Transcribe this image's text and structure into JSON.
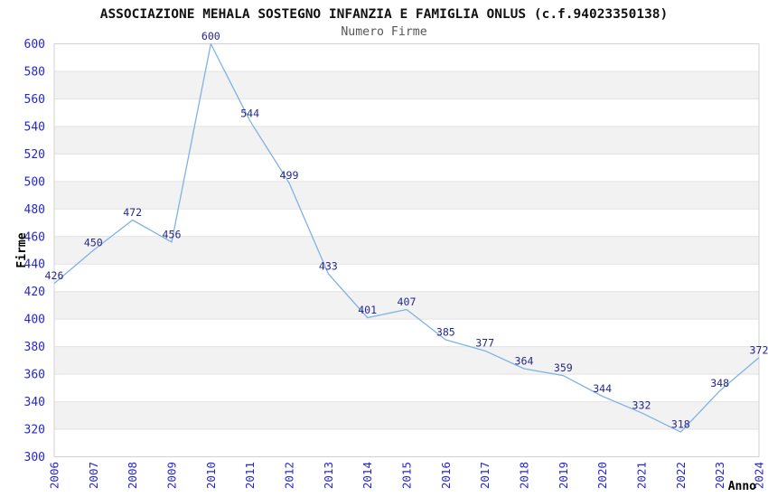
{
  "header": {
    "title": "ASSOCIAZIONE MEHALA SOSTEGNO INFANZIA E FAMIGLIA ONLUS (c.f.94023350138)",
    "subtitle": "Numero Firme"
  },
  "chart_data": {
    "type": "line",
    "title": "ASSOCIAZIONE MEHALA SOSTEGNO INFANZIA E FAMIGLIA ONLUS (c.f.94023350138)",
    "subtitle": "Numero Firme",
    "xlabel": "Anno",
    "ylabel": "Firme",
    "categories": [
      "2006",
      "2007",
      "2008",
      "2009",
      "2010",
      "2011",
      "2012",
      "2013",
      "2014",
      "2015",
      "2016",
      "2017",
      "2018",
      "2019",
      "2020",
      "2021",
      "2022",
      "2023",
      "2024"
    ],
    "series": [
      {
        "name": "Numero Firme",
        "values": [
          426,
          450,
          472,
          456,
          600,
          544,
          499,
          433,
          401,
          407,
          385,
          377,
          364,
          359,
          344,
          332,
          318,
          348,
          372
        ]
      }
    ],
    "ylim": [
      300,
      600
    ],
    "ytick_step": 20,
    "grid": true,
    "legend_position": "none",
    "data_labels_shown": true,
    "colors": {
      "line": "#7fb2e5",
      "data_label": "#26268f",
      "tick_label": "#2525d8",
      "band_fill": "#f2f2f2",
      "gridline": "#e3e3e3",
      "plot_border": "#d2d2d2",
      "title": "#111111",
      "subtitle": "#565656"
    }
  }
}
